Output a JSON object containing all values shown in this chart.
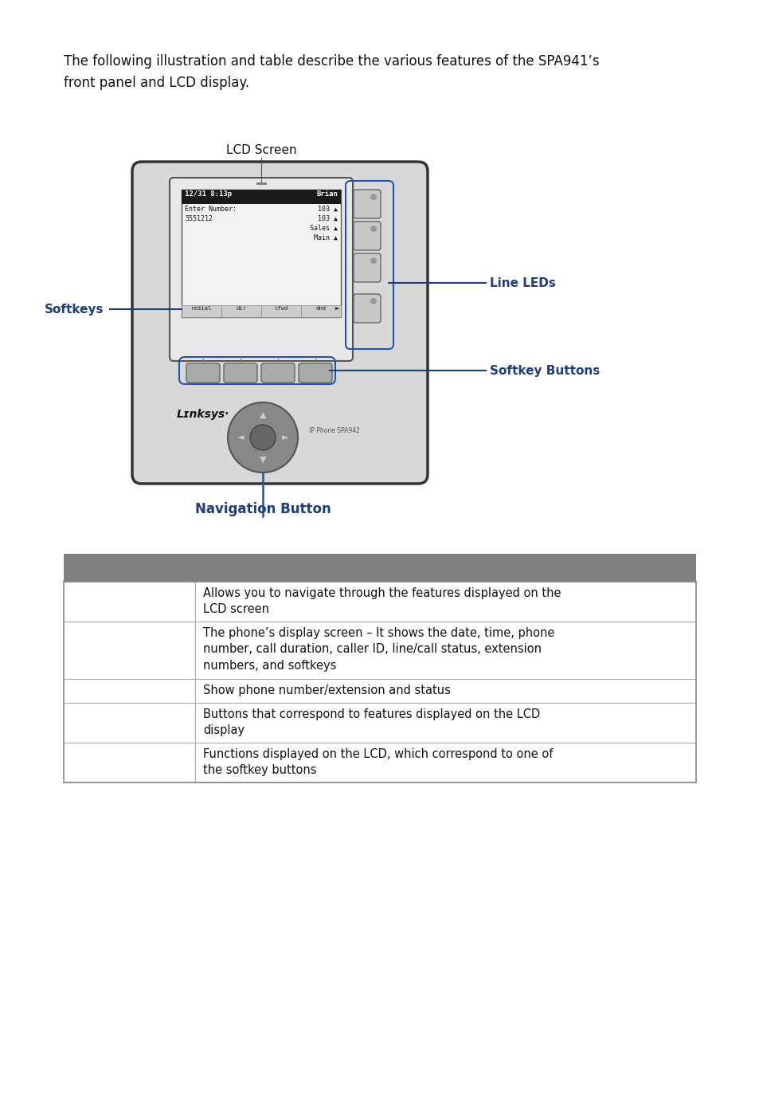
{
  "bg_color": "#ffffff",
  "intro_line1": "The following illustration and table describe the various features of the SPA941’s",
  "intro_line2": "front panel and LCD display.",
  "lcd_screen_label": "LCD Screen",
  "line_leds_label": "Line LEDs",
  "softkeys_label": "Softkeys",
  "softkey_buttons_label": "Softkey Buttons",
  "nav_button_label": "Navigation Button",
  "table_header_color": "#7f7f7f",
  "table_border_color": "#aaaaaa",
  "table_rows": [
    {
      "description": "Allows you to navigate through the features displayed on the\nLCD screen"
    },
    {
      "description": "The phone’s display screen – It shows the date, time, phone\nnumber, call duration, caller ID, line/call status, extension\nnumbers, and softkeys"
    },
    {
      "description": "Show phone number/extension and status"
    },
    {
      "description": "Buttons that correspond to features displayed on the LCD\ndisplay"
    },
    {
      "description": "Functions displayed on the LCD, which correspond to one of\nthe softkey buttons"
    }
  ],
  "label_color": "#1f3d7a",
  "nav_label_color": "#1f3d7a",
  "phone_body_color": "#d8d8d8",
  "phone_border_color": "#333333",
  "lcd_bg_color": "#e8e8e8",
  "lcd_inner_bg": "#f0f0f0",
  "lcd_header_color": "#1a1a1a",
  "line_btn_color": "#bbbbbb",
  "softkey_btn_color": "#aaaaaa",
  "nav_outer_color": "#888888",
  "nav_inner_color": "#666666",
  "arrow_color": "#2255aa",
  "sk_bar_color": "#cccccc"
}
